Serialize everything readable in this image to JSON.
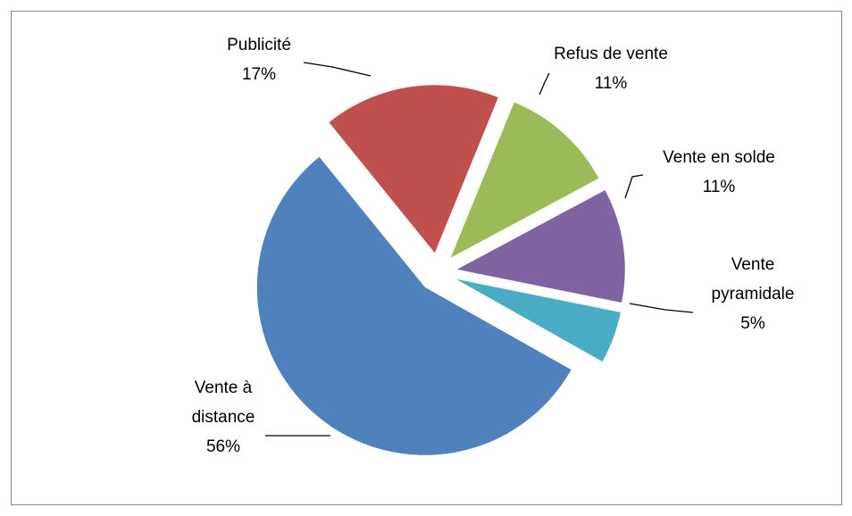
{
  "chart_data": {
    "type": "pie",
    "categories": [
      "Publicité",
      "Refus de vente",
      "Vente en solde",
      "Vente pyramidale",
      "Vente à distance"
    ],
    "values": [
      17,
      11,
      11,
      5,
      56
    ],
    "value_labels": [
      "17%",
      "11%",
      "11%",
      "5%",
      "56%"
    ],
    "colors": [
      "#c0504d",
      "#9bbb59",
      "#8064a2",
      "#4bacc6",
      "#4f81bd"
    ]
  }
}
